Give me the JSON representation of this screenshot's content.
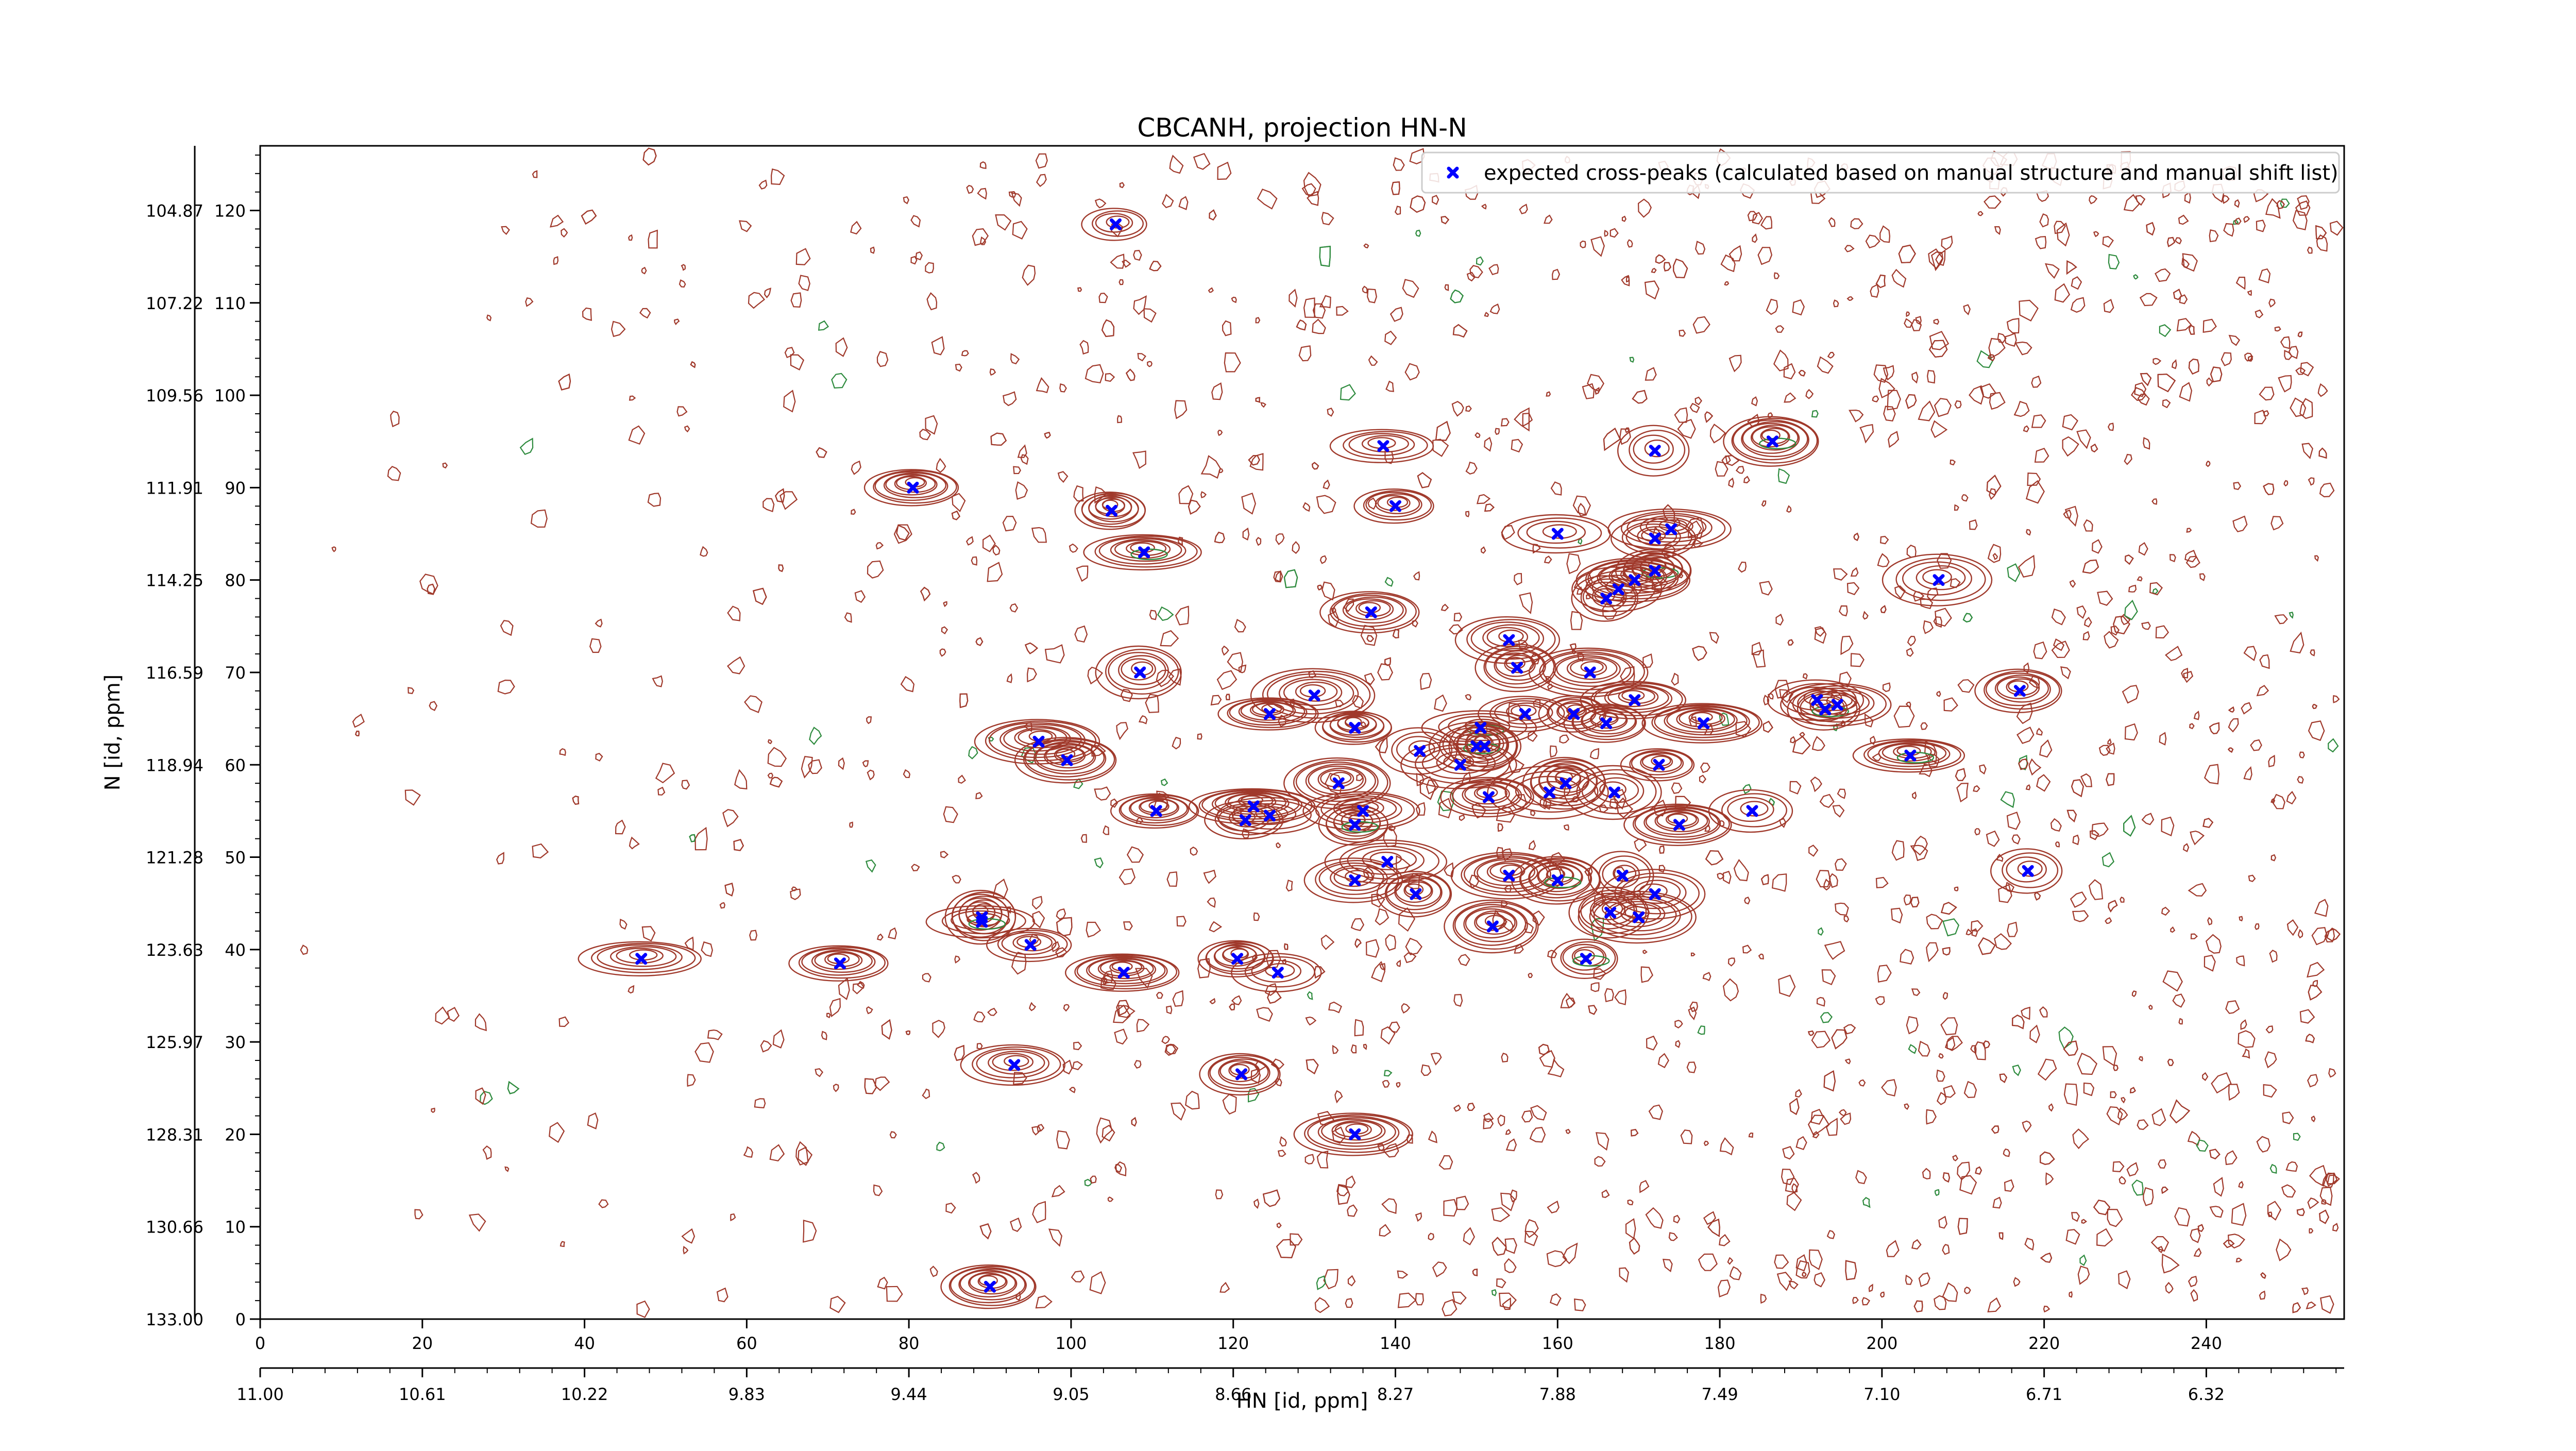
{
  "chart_data": {
    "type": "scatter",
    "title": "CBCANH, projection HN-N",
    "xlabel": "HN [id, ppm]",
    "ylabel": "N [id, ppm]",
    "x_index": {
      "ticks": [
        0,
        20,
        40,
        60,
        80,
        100,
        120,
        140,
        160,
        180,
        200,
        220,
        240
      ],
      "range": [
        0,
        257
      ]
    },
    "x_ppm": {
      "tick_labels": [
        "11.00",
        "10.61",
        "10.22",
        "9.83",
        "9.44",
        "9.05",
        "8.66",
        "8.27",
        "7.88",
        "7.49",
        "7.10",
        "6.71",
        "6.32"
      ],
      "range": [
        11.0,
        5.89
      ]
    },
    "y_index": {
      "ticks": [
        0,
        10,
        20,
        30,
        40,
        50,
        60,
        70,
        80,
        90,
        100,
        110,
        120
      ],
      "range": [
        0,
        127
      ]
    },
    "y_ppm": {
      "tick_labels": [
        "133.00",
        "130.66",
        "128.31",
        "125.97",
        "123.63",
        "121.28",
        "118.94",
        "116.59",
        "114.25",
        "111.91",
        "109.56",
        "107.22",
        "104.87"
      ],
      "range": [
        133.0,
        103.3
      ]
    },
    "legend": {
      "position": "top-right",
      "entries": [
        {
          "label": "expected cross-peaks (calculated based on manual structure and manual shift list)",
          "color": "#0000ff",
          "marker": "X"
        }
      ]
    },
    "colors": {
      "positive_contours": "#a0392b",
      "negative_contours": "#2e8b3e",
      "markers": "#0000ff"
    },
    "series": [
      {
        "name": "expected cross-peaks (calculated based on manual structure and manual shift list)",
        "points": [
          [
            105.5,
            118.5
          ],
          [
            138.5,
            94.5
          ],
          [
            140,
            88
          ],
          [
            109,
            83
          ],
          [
            80.5,
            90
          ],
          [
            105,
            87.5
          ],
          [
            160,
            85
          ],
          [
            172,
            84.5
          ],
          [
            174,
            85.5
          ],
          [
            137,
            76.5
          ],
          [
            172,
            81
          ],
          [
            169.5,
            80
          ],
          [
            167.5,
            79
          ],
          [
            166,
            78
          ],
          [
            154,
            73.5
          ],
          [
            155,
            70.5
          ],
          [
            164,
            70
          ],
          [
            186.5,
            95
          ],
          [
            172,
            94
          ],
          [
            207,
            80
          ],
          [
            108.5,
            70
          ],
          [
            130,
            67.5
          ],
          [
            124.5,
            65.5
          ],
          [
            135,
            64
          ],
          [
            150.5,
            64
          ],
          [
            156,
            65.5
          ],
          [
            162,
            65.5
          ],
          [
            169.5,
            67
          ],
          [
            166,
            64.5
          ],
          [
            178,
            64.5
          ],
          [
            192,
            67
          ],
          [
            193,
            66
          ],
          [
            194.5,
            66.5
          ],
          [
            217,
            68
          ],
          [
            96,
            62.5
          ],
          [
            99.5,
            60.5
          ],
          [
            143,
            61.5
          ],
          [
            148,
            60
          ],
          [
            150,
            62
          ],
          [
            151,
            62
          ],
          [
            133,
            58
          ],
          [
            161,
            58
          ],
          [
            159,
            57
          ],
          [
            167,
            57
          ],
          [
            172.5,
            60
          ],
          [
            203.5,
            61
          ],
          [
            110.5,
            55
          ],
          [
            122.5,
            55.5
          ],
          [
            124.5,
            54.5
          ],
          [
            121.5,
            54
          ],
          [
            136,
            55
          ],
          [
            151.5,
            56.5
          ],
          [
            135,
            53.5
          ],
          [
            175,
            53.5
          ],
          [
            184,
            55
          ],
          [
            139,
            49.5
          ],
          [
            135,
            47.5
          ],
          [
            142.5,
            46
          ],
          [
            154,
            48
          ],
          [
            160,
            47.5
          ],
          [
            168,
            48
          ],
          [
            172,
            46
          ],
          [
            166.5,
            44
          ],
          [
            170,
            43.5
          ],
          [
            152,
            42.5
          ],
          [
            89,
            43.5
          ],
          [
            89,
            43
          ],
          [
            95,
            40.5
          ],
          [
            47,
            39
          ],
          [
            71.5,
            38.5
          ],
          [
            120.5,
            39
          ],
          [
            106.5,
            37.5
          ],
          [
            125.5,
            37.5
          ],
          [
            163.5,
            39
          ],
          [
            93,
            27.5
          ],
          [
            121,
            26.5
          ],
          [
            135,
            20
          ],
          [
            90,
            3.5
          ],
          [
            218,
            48.5
          ]
        ]
      }
    ]
  }
}
